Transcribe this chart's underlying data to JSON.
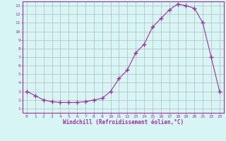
{
  "x": [
    0,
    1,
    2,
    3,
    4,
    5,
    6,
    7,
    8,
    9,
    10,
    11,
    12,
    13,
    14,
    15,
    16,
    17,
    18,
    19,
    20,
    21,
    22,
    23
  ],
  "y": [
    3.0,
    2.5,
    2.0,
    1.8,
    1.7,
    1.7,
    1.7,
    1.8,
    2.0,
    2.2,
    3.0,
    4.5,
    5.5,
    7.5,
    8.5,
    10.5,
    11.5,
    12.5,
    13.2,
    13.0,
    12.7,
    11.0,
    7.0,
    3.0
  ],
  "line_color": "#993399",
  "marker": "+",
  "bg_color": "#d8f5f5",
  "grid_color": "#aaaaaa",
  "axis_label_color": "#993399",
  "xlabel": "Windchill (Refroidissement éolien,°C)",
  "xlim": [
    -0.5,
    23.5
  ],
  "ylim": [
    0.5,
    13.5
  ],
  "yticks": [
    1,
    2,
    3,
    4,
    5,
    6,
    7,
    8,
    9,
    10,
    11,
    12,
    13
  ],
  "xticks": [
    0,
    1,
    2,
    3,
    4,
    5,
    6,
    7,
    8,
    9,
    10,
    11,
    12,
    13,
    14,
    15,
    16,
    17,
    18,
    19,
    20,
    21,
    22,
    23
  ],
  "spine_color": "#993399",
  "tick_color": "#993399"
}
